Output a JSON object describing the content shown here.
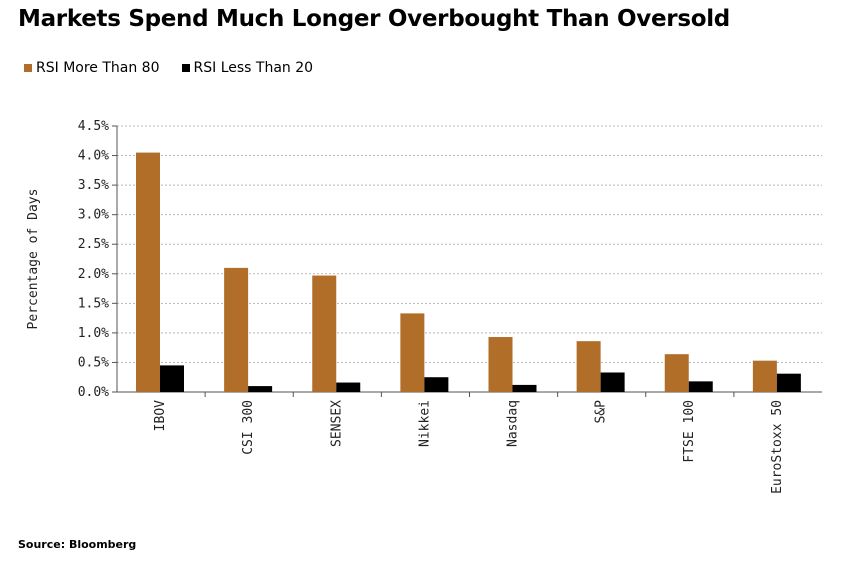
{
  "title": "Markets Spend Much Longer Overbought Than Oversold",
  "source": "Source: Bloomberg",
  "colors": {
    "series1": "#b06e28",
    "series2": "#000000",
    "grid": "#b8b8b8"
  },
  "chart_data": {
    "type": "bar",
    "categories": [
      "IBOV",
      "CSI 300",
      "SENSEX",
      "Nikkei",
      "Nasdaq",
      "S&P",
      "FTSE 100",
      "EuroStoxx 50"
    ],
    "series": [
      {
        "name": "RSI More Than 80",
        "values": [
          4.05,
          2.1,
          1.97,
          1.33,
          0.93,
          0.86,
          0.64,
          0.53
        ]
      },
      {
        "name": "RSI Less Than 20",
        "values": [
          0.45,
          0.1,
          0.16,
          0.25,
          0.12,
          0.33,
          0.18,
          0.31
        ]
      }
    ],
    "ylabel": "Percentage of Days",
    "xlabel": "",
    "ylim": [
      0,
      4.5
    ],
    "yticks": [
      "0.0%",
      "0.5%",
      "1.0%",
      "1.5%",
      "2.0%",
      "2.5%",
      "3.0%",
      "3.5%",
      "4.0%",
      "4.5%"
    ],
    "grid": true,
    "legend": "top-left"
  }
}
